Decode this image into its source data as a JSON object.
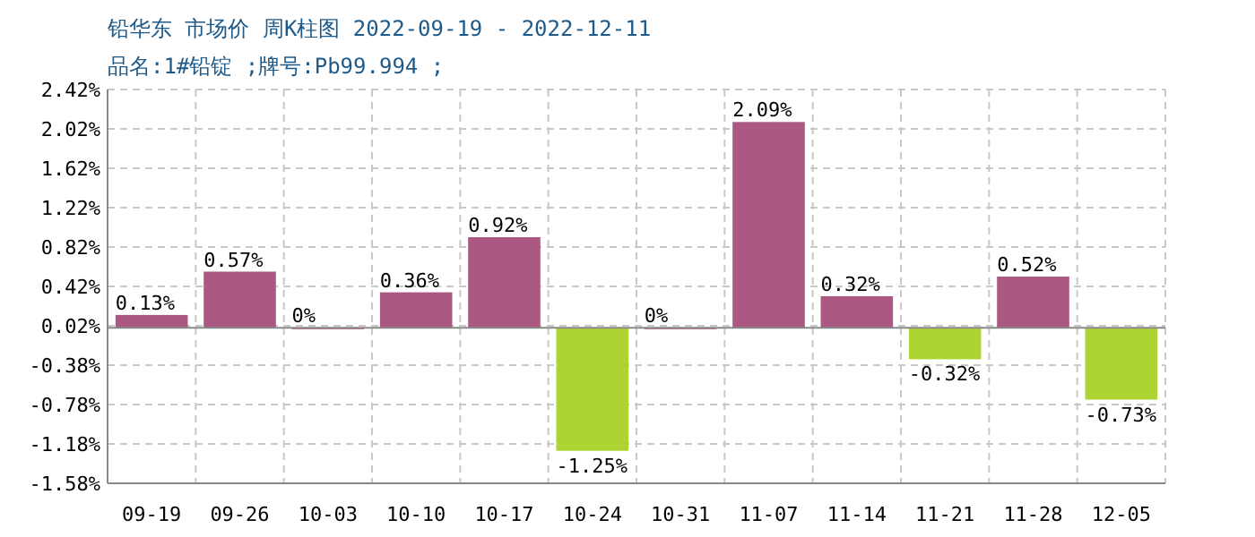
{
  "chart_data": {
    "type": "bar",
    "title": "铅华东 市场价 周K柱图 2022-09-19 - 2022-12-11",
    "subtitle": "品名:1#铅锭 ;牌号:Pb99.994 ;",
    "categories": [
      "09-19",
      "09-26",
      "10-03",
      "10-10",
      "10-17",
      "10-24",
      "10-31",
      "11-07",
      "11-14",
      "11-21",
      "11-28",
      "12-05"
    ],
    "values": [
      0.13,
      0.57,
      0,
      0.36,
      0.92,
      -1.25,
      0,
      2.09,
      0.32,
      -0.32,
      0.52,
      -0.73
    ],
    "colors": [
      "#ab5982",
      "#ab5982",
      "#ab5982",
      "#ab5982",
      "#ab5982",
      "#add432",
      "#ab5982",
      "#ab5982",
      "#ab5982",
      "#add432",
      "#ab5982",
      "#add432"
    ],
    "value_labels": [
      "0.13%",
      "0.57%",
      "0%",
      "0.36%",
      "0.92%",
      "-1.25%",
      "0%",
      "2.09%",
      "0.32%",
      "-0.32%",
      "0.52%",
      "-0.73%"
    ],
    "ylim": [
      -1.58,
      2.42
    ],
    "yticks": [
      {
        "value": -1.58,
        "label": "-1.58%"
      },
      {
        "value": -1.18,
        "label": "-1.18%"
      },
      {
        "value": -0.78,
        "label": "-0.78%"
      },
      {
        "value": -0.38,
        "label": "-0.38%"
      },
      {
        "value": 0.02,
        "label": "0.02%"
      },
      {
        "value": 0.42,
        "label": "0.42%"
      },
      {
        "value": 0.82,
        "label": "0.82%"
      },
      {
        "value": 1.22,
        "label": "1.22%"
      },
      {
        "value": 1.62,
        "label": "1.62%"
      },
      {
        "value": 2.02,
        "label": "2.02%"
      },
      {
        "value": 2.42,
        "label": "2.42%"
      }
    ],
    "grid": true
  }
}
